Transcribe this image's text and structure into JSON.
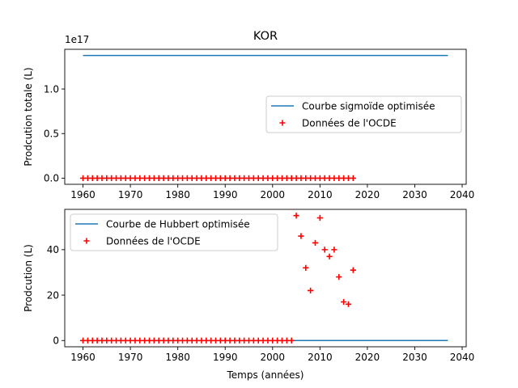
{
  "title": "KOR",
  "colors": {
    "curve": "#1f77b4",
    "points": "#ff0000",
    "axis": "#000000",
    "legend_border": "#cccccc"
  },
  "chart_data": [
    {
      "type": "line",
      "offset_text": "1e17",
      "ylabel": "Prodcution totale (L)",
      "xlabel": "",
      "xlim": [
        1956.15,
        2040.85
      ],
      "ylim": [
        -0.069,
        1.445
      ],
      "x_ticks": [
        1960,
        1970,
        1980,
        1990,
        2000,
        2010,
        2020,
        2030,
        2040
      ],
      "y_ticks": [
        0.0,
        0.5,
        1.0
      ],
      "y_tick_labels": [
        "0.0",
        "0.5",
        "1.0"
      ],
      "legend_position": "center-right",
      "series": [
        {
          "name": "Courbe sigmoïde optimisée",
          "kind": "line",
          "x": [
            1960,
            2037
          ],
          "y": [
            1.376,
            1.376
          ]
        },
        {
          "name": "Données de l'OCDE",
          "kind": "scatter",
          "x_start": 1960,
          "x_end": 2017,
          "y_constant": 0.0
        }
      ]
    },
    {
      "type": "line",
      "ylabel": "Prodcution (L)",
      "xlabel": "Temps (années)",
      "xlim": [
        1956.15,
        2040.85
      ],
      "ylim": [
        -2.75,
        57.75
      ],
      "x_ticks": [
        1960,
        1970,
        1980,
        1990,
        2000,
        2010,
        2020,
        2030,
        2040
      ],
      "y_ticks": [
        0,
        20,
        40
      ],
      "y_tick_labels": [
        "0",
        "20",
        "40"
      ],
      "legend_position": "top-left",
      "series": [
        {
          "name": "Courbe de Hubbert optimisée",
          "kind": "line",
          "x": [
            1960,
            2037
          ],
          "y": [
            0,
            0
          ]
        },
        {
          "name": "Données de l'OCDE",
          "kind": "scatter",
          "zero_x_start": 1960,
          "zero_x_end": 2004,
          "x": [
            2005,
            2006,
            2007,
            2008,
            2009,
            2010,
            2011,
            2012,
            2013,
            2014,
            2015,
            2016,
            2017
          ],
          "y": [
            55,
            46,
            32,
            22,
            43,
            54,
            40,
            37,
            40,
            28,
            17,
            16,
            31
          ]
        }
      ]
    }
  ]
}
